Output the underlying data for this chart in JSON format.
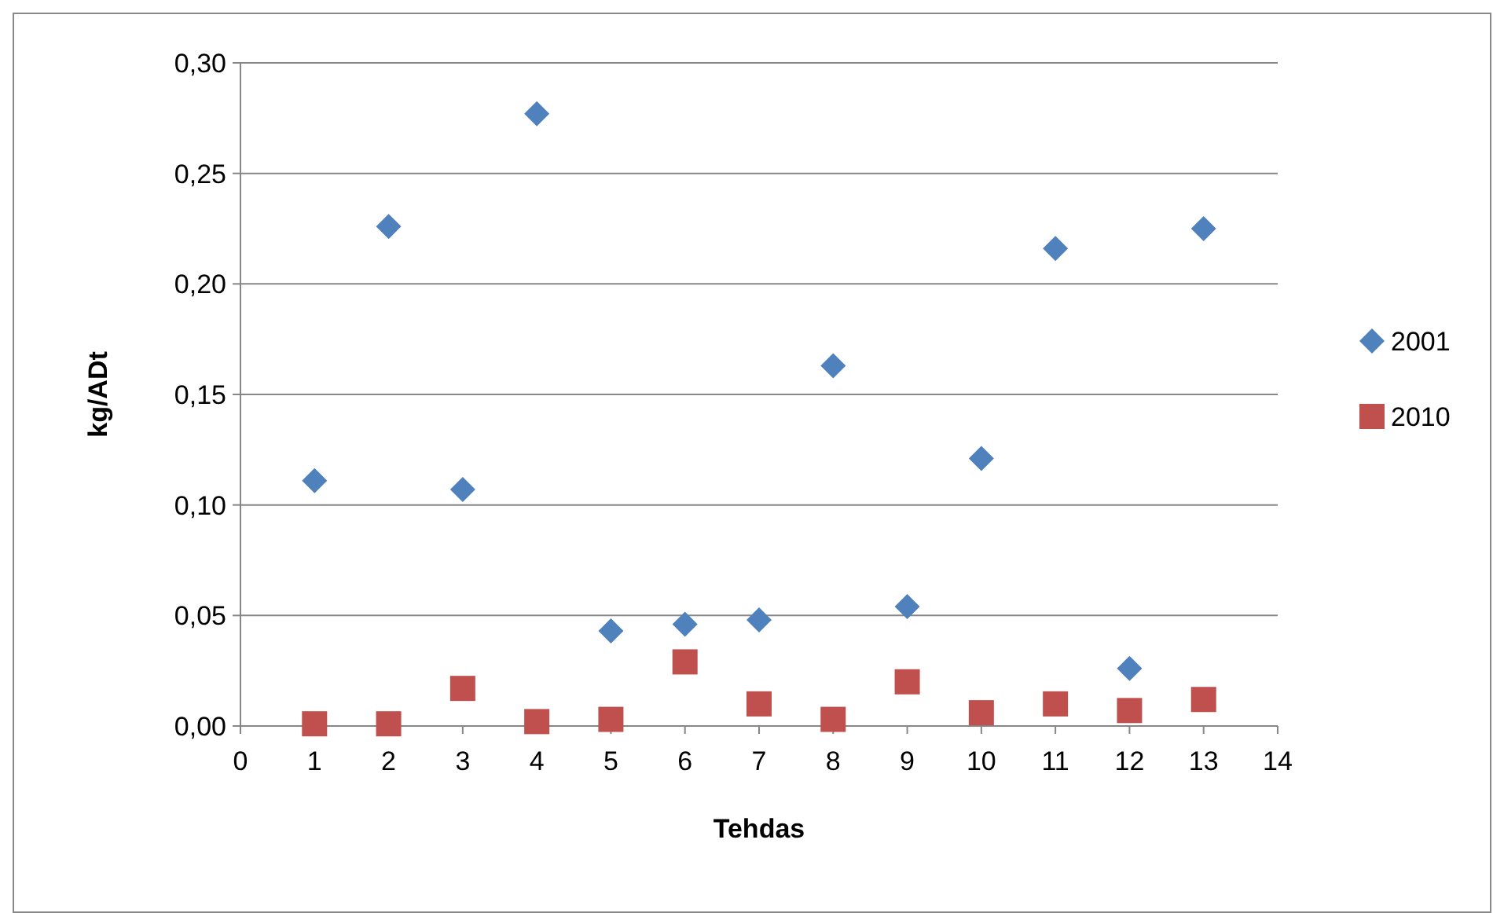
{
  "chart_data": {
    "type": "scatter",
    "xlabel": "Tehdas",
    "ylabel": "kg/ADt",
    "x": [
      1,
      2,
      3,
      4,
      5,
      6,
      7,
      8,
      9,
      10,
      11,
      12,
      13
    ],
    "series": [
      {
        "name": "2001",
        "color": "#4f81bd",
        "marker": "diamond",
        "values": [
          0.111,
          0.226,
          0.107,
          0.277,
          0.043,
          0.046,
          0.048,
          0.163,
          0.054,
          0.121,
          0.216,
          0.026,
          0.225
        ]
      },
      {
        "name": "2010",
        "color": "#c0504d",
        "marker": "square",
        "values": [
          0.001,
          0.001,
          0.017,
          0.002,
          0.003,
          0.029,
          0.01,
          0.003,
          0.02,
          0.006,
          0.01,
          0.007,
          0.012
        ]
      }
    ],
    "xlim": [
      0,
      14
    ],
    "xticks": [
      0,
      1,
      2,
      3,
      4,
      5,
      6,
      7,
      8,
      9,
      10,
      11,
      12,
      13,
      14
    ],
    "ylim": [
      0,
      0.3
    ],
    "yticks": [
      {
        "value": 0,
        "label": "0,00"
      },
      {
        "value": 0.05,
        "label": "0,05"
      },
      {
        "value": 0.1,
        "label": "0,10"
      },
      {
        "value": 0.15,
        "label": "0,15"
      },
      {
        "value": 0.2,
        "label": "0,20"
      },
      {
        "value": 0.25,
        "label": "0,25"
      },
      {
        "value": 0.3,
        "label": "0,30"
      }
    ],
    "grid": "y",
    "legend": "right"
  }
}
